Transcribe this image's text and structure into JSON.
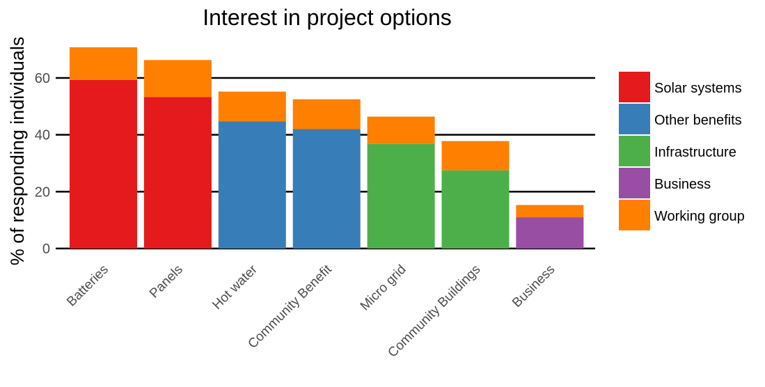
{
  "chart_data": {
    "type": "bar",
    "stacked": true,
    "title": "Interest in project options",
    "xlabel": "",
    "ylabel": "% of responding individuals",
    "ylim": [
      0,
      72
    ],
    "yticks": [
      0,
      20,
      40,
      60
    ],
    "grid": true,
    "legend_position": "right",
    "categories": [
      "Batteries",
      "Panels",
      "Hot water",
      "Community Benefit",
      "Micro grid",
      "Community Buildings",
      "Business"
    ],
    "bars": [
      {
        "category": "Batteries",
        "group": "Solar systems",
        "base": 59.3,
        "working_group": 11.5,
        "total": 70.8
      },
      {
        "category": "Panels",
        "group": "Solar systems",
        "base": 53.3,
        "working_group": 13.0,
        "total": 66.3
      },
      {
        "category": "Hot water",
        "group": "Other benefits",
        "base": 44.7,
        "working_group": 10.5,
        "total": 55.2
      },
      {
        "category": "Community Benefit",
        "group": "Other benefits",
        "base": 42.0,
        "working_group": 10.5,
        "total": 52.5
      },
      {
        "category": "Micro grid",
        "group": "Infrastructure",
        "base": 36.8,
        "working_group": 9.6,
        "total": 46.4
      },
      {
        "category": "Community Buildings",
        "group": "Infrastructure",
        "base": 27.5,
        "working_group": 10.3,
        "total": 37.8
      },
      {
        "category": "Business",
        "group": "Business",
        "base": 11.0,
        "working_group": 4.3,
        "total": 15.3
      }
    ],
    "legend": [
      {
        "name": "Solar systems",
        "color": "#e41a1c"
      },
      {
        "name": "Other benefits",
        "color": "#377eb8"
      },
      {
        "name": "Infrastructure",
        "color": "#4daf4a"
      },
      {
        "name": "Business",
        "color": "#984ea3"
      },
      {
        "name": "Working group",
        "color": "#ff7f00"
      }
    ]
  }
}
